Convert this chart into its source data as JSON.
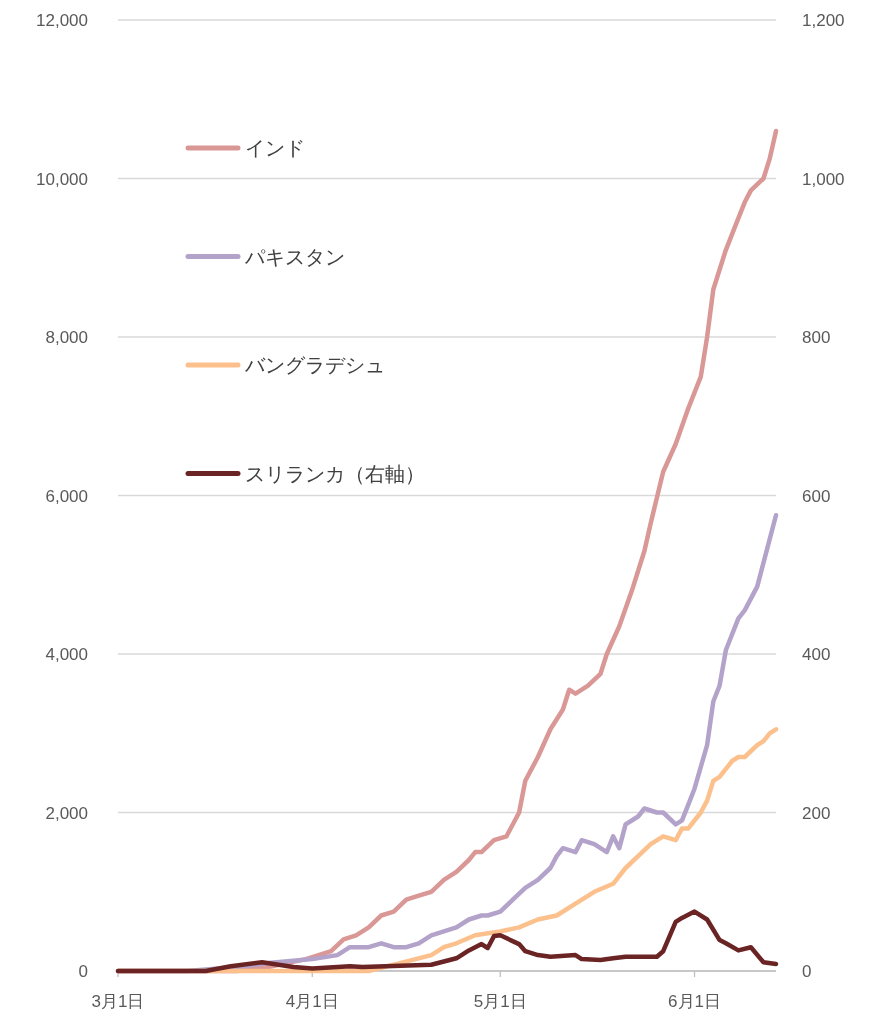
{
  "chart_data": {
    "type": "line",
    "xlim": [
      "--03-01",
      "--06-14"
    ],
    "xticks": [
      {
        "value": "--03-01",
        "label": "3月1日"
      },
      {
        "value": "--04-01",
        "label": "4月1日"
      },
      {
        "value": "--05-01",
        "label": "5月1日"
      },
      {
        "value": "--06-01",
        "label": "6月1日"
      }
    ],
    "ylim": [
      0,
      12000
    ],
    "yticks": [
      {
        "value": 0,
        "label": "0"
      },
      {
        "value": 2000,
        "label": "2,000"
      },
      {
        "value": 4000,
        "label": "4,000"
      },
      {
        "value": 6000,
        "label": "6,000"
      },
      {
        "value": 8000,
        "label": "8,000"
      },
      {
        "value": 10000,
        "label": "10,000"
      },
      {
        "value": 12000,
        "label": "12,000"
      }
    ],
    "y2lim": [
      0,
      1200
    ],
    "y2ticks": [
      {
        "value": 0,
        "label": "0"
      },
      {
        "value": 200,
        "label": "200"
      },
      {
        "value": 400,
        "label": "400"
      },
      {
        "value": 600,
        "label": "600"
      },
      {
        "value": 800,
        "label": "800"
      },
      {
        "value": 1000,
        "label": "1,000"
      },
      {
        "value": 1200,
        "label": "1,200"
      }
    ],
    "grid": "y",
    "legend": "top left",
    "line_style": "solid",
    "marker": "none",
    "series": [
      {
        "name": "インド",
        "color": "#d99795",
        "x": [
          "--03-01",
          "--03-10",
          "--03-20",
          "--03-25",
          "--03-31",
          "--04-04",
          "--04-06",
          "--04-08",
          "--04-10",
          "--04-12",
          "--04-14",
          "--04-16",
          "--04-18",
          "--04-20",
          "--04-22",
          "--04-24",
          "--04-26",
          "--04-27",
          "--04-28",
          "--04-30",
          "--05-02",
          "--05-04",
          "--05-05",
          "--05-07",
          "--05-09",
          "--05-11",
          "--05-12",
          "--05-13",
          "--05-15",
          "--05-17",
          "--05-18",
          "--05-20",
          "--05-22",
          "--05-24",
          "--05-25",
          "--05-27",
          "--05-29",
          "--05-31",
          "--06-02",
          "--06-03",
          "--06-04",
          "--06-06",
          "--06-08",
          "--06-09",
          "--06-10",
          "--06-12",
          "--06-13",
          "--06-14"
        ],
        "values": [
          0,
          0,
          0,
          50,
          150,
          250,
          400,
          450,
          550,
          700,
          750,
          900,
          950,
          1000,
          1150,
          1250,
          1400,
          1500,
          1500,
          1650,
          1700,
          2000,
          2400,
          2700,
          3050,
          3300,
          3550,
          3500,
          3600,
          3750,
          4000,
          4350,
          4800,
          5300,
          5650,
          6300,
          6650,
          7100,
          7500,
          8000,
          8600,
          9100,
          9500,
          9700,
          9850,
          10000,
          10250,
          10600
        ]
      },
      {
        "name": "パキスタン",
        "color": "#b3a2c9",
        "x": [
          "--03-01",
          "--03-12",
          "--03-20",
          "--03-25",
          "--04-01",
          "--04-05",
          "--04-07",
          "--04-10",
          "--04-12",
          "--04-14",
          "--04-16",
          "--04-18",
          "--04-20",
          "--04-22",
          "--04-24",
          "--04-26",
          "--04-28",
          "--04-29",
          "--05-01",
          "--05-03",
          "--05-05",
          "--05-07",
          "--05-09",
          "--05-10",
          "--05-11",
          "--05-13",
          "--05-14",
          "--05-16",
          "--05-18",
          "--05-19",
          "--05-20",
          "--05-21",
          "--05-23",
          "--05-24",
          "--05-26",
          "--05-27",
          "--05-29",
          "--05-30",
          "--05-31",
          "--06-01",
          "--06-03",
          "--06-04",
          "--06-05",
          "--06-06",
          "--06-08",
          "--06-09",
          "--06-11",
          "--06-14"
        ],
        "values": [
          0,
          0,
          50,
          100,
          150,
          200,
          300,
          300,
          350,
          300,
          300,
          350,
          450,
          500,
          550,
          650,
          700,
          700,
          750,
          900,
          1050,
          1150,
          1300,
          1450,
          1550,
          1500,
          1650,
          1600,
          1500,
          1700,
          1550,
          1850,
          1950,
          2050,
          2000,
          2000,
          1850,
          1900,
          2100,
          2300,
          2850,
          3400,
          3600,
          4050,
          4450,
          4550,
          4850,
          5750
        ]
      },
      {
        "name": "バングラデシュ",
        "color": "#fcc08d",
        "x": [
          "--03-01",
          "--04-10",
          "--04-15",
          "--04-20",
          "--04-22",
          "--04-24",
          "--04-27",
          "--05-01",
          "--05-04",
          "--05-07",
          "--05-10",
          "--05-13",
          "--05-16",
          "--05-19",
          "--05-21",
          "--05-23",
          "--05-25",
          "--05-27",
          "--05-29",
          "--05-30",
          "--05-31",
          "--06-02",
          "--06-03",
          "--06-04",
          "--06-05",
          "--06-06",
          "--06-07",
          "--06-08",
          "--06-09",
          "--06-11",
          "--06-12",
          "--06-13",
          "--06-14"
        ],
        "values": [
          0,
          0,
          100,
          200,
          300,
          350,
          450,
          500,
          550,
          650,
          700,
          850,
          1000,
          1100,
          1300,
          1450,
          1600,
          1700,
          1650,
          1800,
          1800,
          2000,
          2150,
          2400,
          2450,
          2550,
          2650,
          2700,
          2700,
          2850,
          2900,
          3000,
          3050
        ]
      },
      {
        "name": "スリランカ（右軸）",
        "color": "#6b2424",
        "axis": "y2",
        "x": [
          "--03-01",
          "--03-15",
          "--03-19",
          "--03-24",
          "--03-29",
          "--04-01",
          "--04-07",
          "--04-09",
          "--04-20",
          "--04-22",
          "--04-24",
          "--04-26",
          "--04-28",
          "--04-29",
          "--04-30",
          "--05-01",
          "--05-04",
          "--05-05",
          "--05-07",
          "--05-09",
          "--05-13",
          "--05-14",
          "--05-17",
          "--05-19",
          "--05-21",
          "--05-26",
          "--05-27",
          "--05-29",
          "--05-30",
          "--06-01",
          "--06-03",
          "--06-05",
          "--06-06",
          "--06-08",
          "--06-10",
          "--06-12",
          "--06-14"
        ],
        "values": [
          0,
          0,
          6,
          11,
          5,
          3,
          6,
          5,
          8,
          12,
          16,
          26,
          34,
          29,
          44,
          45,
          34,
          25,
          20,
          18,
          20,
          15,
          14,
          16,
          18,
          18,
          25,
          62,
          67,
          75,
          65,
          39,
          35,
          26,
          30,
          11,
          9
        ]
      }
    ]
  }
}
